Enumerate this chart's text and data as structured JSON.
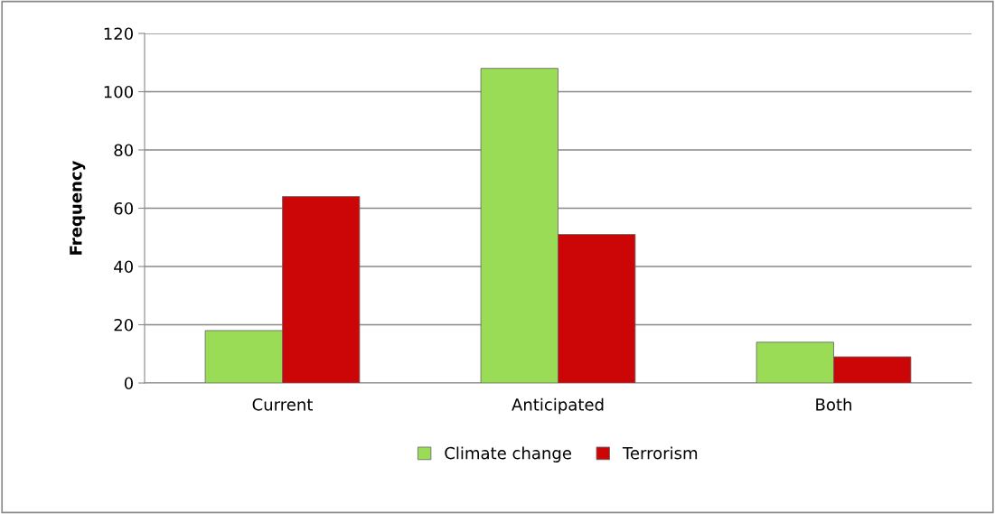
{
  "chart_data": {
    "type": "bar",
    "ylabel": "Frequency",
    "categories": [
      "Current",
      "Anticipated",
      "Both"
    ],
    "series": [
      {
        "name": "Climate change",
        "color": "#9bdc57",
        "values": [
          18,
          108,
          14
        ]
      },
      {
        "name": "Terrorism",
        "color": "#cc0606",
        "values": [
          64,
          51,
          9
        ]
      }
    ],
    "ylim": [
      0,
      120
    ],
    "yticks": [
      0,
      20,
      40,
      60,
      80,
      100,
      120
    ],
    "grid": "y",
    "legend": "bottom"
  }
}
